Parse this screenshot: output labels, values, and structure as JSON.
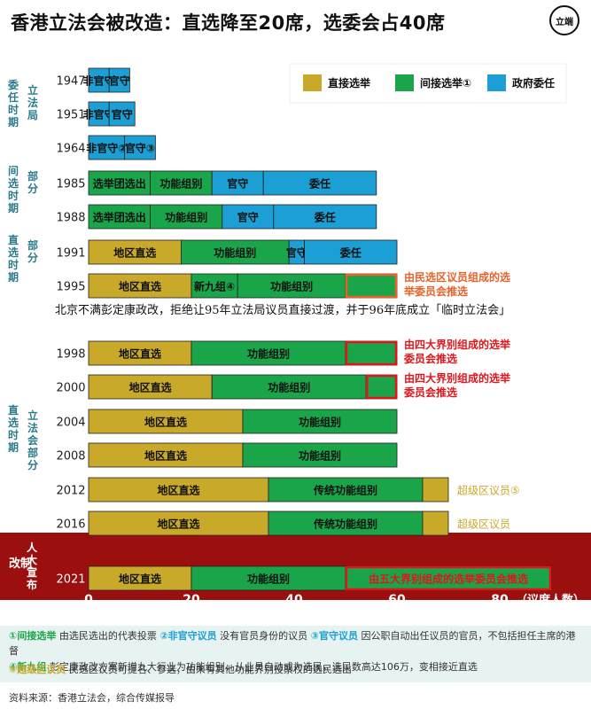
{
  "title": "香港立法会被改造：直选降至20席，选委会占40席",
  "logo": "立端",
  "mid_note": "北京不满彭定康政改，拒绝让95年立法局议员直接过渡，并于96年底成立「临时立法会」",
  "colors": {
    "direct": "#c9a92a",
    "indirect": "#1aa54a",
    "appointed": "#1b9fd4",
    "band_2021": "#9b0f0f",
    "highlight_orange": "#e8622a",
    "highlight_red": "#e0161b",
    "side_text": "#2d7a8c",
    "axis_label": "#333333"
  },
  "chart_data": {
    "type": "bar",
    "orientation": "horizontal-stacked",
    "xlabel": "（议席人数）",
    "xlim": [
      0,
      80
    ],
    "xticks": [
      0,
      20,
      40,
      60,
      80
    ],
    "legend": [
      {
        "key": "direct",
        "label": "直接选举"
      },
      {
        "key": "indirect",
        "label": "间接选举①"
      },
      {
        "key": "appointed",
        "label": "政府委任"
      }
    ],
    "periods": [
      {
        "label": "委任时期",
        "sub": "立法局",
        "rows": [
          0,
          2
        ]
      },
      {
        "label": "间选时期",
        "sub": "部分",
        "rows": [
          3,
          4
        ]
      },
      {
        "label": "直选时期",
        "sub": "部分",
        "rows": [
          5,
          6
        ]
      },
      {
        "label": "直选时期",
        "sub": "立法会部分",
        "rows": [
          7,
          12
        ]
      },
      {
        "label": "改制",
        "sub": "人大宣布",
        "rows": [
          13,
          13
        ]
      }
    ],
    "rows": [
      {
        "year": "1947",
        "segments": [
          {
            "type": "appointed",
            "label": "非官守",
            "value": 4
          },
          {
            "type": "appointed",
            "label": "官守",
            "value": 4
          }
        ]
      },
      {
        "year": "1951",
        "segments": [
          {
            "type": "appointed",
            "label": "非官守",
            "value": 4
          },
          {
            "type": "appointed",
            "label": "官守",
            "value": 5
          }
        ]
      },
      {
        "year": "1964",
        "segments": [
          {
            "type": "appointed",
            "label": "非官守②",
            "value": 7
          },
          {
            "type": "appointed",
            "label": "官守③",
            "value": 6
          }
        ]
      },
      {
        "year": "1985",
        "segments": [
          {
            "type": "indirect",
            "label": "选举团选出",
            "value": 12
          },
          {
            "type": "indirect",
            "label": "功能组别",
            "value": 12
          },
          {
            "type": "appointed",
            "label": "官守",
            "value": 10
          },
          {
            "type": "appointed",
            "label": "委任",
            "value": 22
          }
        ]
      },
      {
        "year": "1988",
        "segments": [
          {
            "type": "indirect",
            "label": "选举团选出",
            "value": 12
          },
          {
            "type": "indirect",
            "label": "功能组别",
            "value": 14
          },
          {
            "type": "appointed",
            "label": "官守",
            "value": 10
          },
          {
            "type": "appointed",
            "label": "委任",
            "value": 20
          }
        ]
      },
      {
        "year": "1991",
        "segments": [
          {
            "type": "direct",
            "label": "地区直选",
            "value": 18
          },
          {
            "type": "indirect",
            "label": "功能组别",
            "value": 21
          },
          {
            "type": "appointed",
            "label": "官守",
            "value": 3
          },
          {
            "type": "appointed",
            "label": "委任",
            "value": 18
          }
        ]
      },
      {
        "year": "1995",
        "segments": [
          {
            "type": "direct",
            "label": "地区直选",
            "value": 20
          },
          {
            "type": "indirect",
            "label": "新九组④",
            "value": 9
          },
          {
            "type": "indirect",
            "label": "功能组别",
            "value": 21
          },
          {
            "type": "indirect",
            "label": "",
            "value": 10,
            "box": "orange",
            "note": "由民选区议员组成的选举委员会推选"
          }
        ]
      },
      {
        "year": "1998",
        "segments": [
          {
            "type": "direct",
            "label": "地区直选",
            "value": 20
          },
          {
            "type": "indirect",
            "label": "功能组别",
            "value": 30
          },
          {
            "type": "indirect",
            "label": "",
            "value": 10,
            "box": "red",
            "note": "由四大界别组成的选举委员会推选"
          }
        ]
      },
      {
        "year": "2000",
        "segments": [
          {
            "type": "direct",
            "label": "地区直选",
            "value": 24
          },
          {
            "type": "indirect",
            "label": "功能组别",
            "value": 30
          },
          {
            "type": "indirect",
            "label": "",
            "value": 6,
            "box": "red",
            "note": "由四大界别组成的选举委员会推选"
          }
        ]
      },
      {
        "year": "2004",
        "segments": [
          {
            "type": "direct",
            "label": "地区直选",
            "value": 30
          },
          {
            "type": "indirect",
            "label": "功能组别",
            "value": 30
          }
        ]
      },
      {
        "year": "2008",
        "segments": [
          {
            "type": "direct",
            "label": "地区直选",
            "value": 30
          },
          {
            "type": "indirect",
            "label": "功能组别",
            "value": 30
          }
        ]
      },
      {
        "year": "2012",
        "segments": [
          {
            "type": "direct",
            "label": "地区直选",
            "value": 35
          },
          {
            "type": "indirect",
            "label": "传统功能组别",
            "value": 30
          },
          {
            "type": "direct",
            "label": "",
            "value": 5,
            "outline": true
          }
        ],
        "note": "超级区议员⑤"
      },
      {
        "year": "2016",
        "segments": [
          {
            "type": "direct",
            "label": "地区直选",
            "value": 35
          },
          {
            "type": "indirect",
            "label": "传统功能组别",
            "value": 30
          },
          {
            "type": "direct",
            "label": "",
            "value": 5,
            "outline": true
          }
        ],
        "note": "超级区议员"
      },
      {
        "year": "2021",
        "segments": [
          {
            "type": "direct",
            "label": "地区直选",
            "value": 20
          },
          {
            "type": "indirect",
            "label": "功能组别",
            "value": 30
          },
          {
            "type": "indirect",
            "label": "由五大界别组成的选举委员会推选",
            "value": 40,
            "box": "red"
          }
        ]
      }
    ]
  },
  "footnotes": [
    {
      "label": "①间接选举",
      "text": "由选民选出的代表投票"
    },
    {
      "label": "②非官守议员",
      "text": "没有官员身份的议员"
    },
    {
      "label": "③官守议员",
      "text": "因公职自动出任议员的官员，不包括担任主席的港督"
    },
    {
      "label": "④新九组",
      "text": "彭定康政改方案新增九大行业为功能组别，从业员自动成为选民，选民数高达106万，变相接近直选"
    },
    {
      "label": "⑤超级区议员",
      "text": "民选区议员可提名、参选，由未有其他功能界别投票权的选民选出"
    }
  ],
  "source": "资料来源：香港立法会，综合传媒报导"
}
